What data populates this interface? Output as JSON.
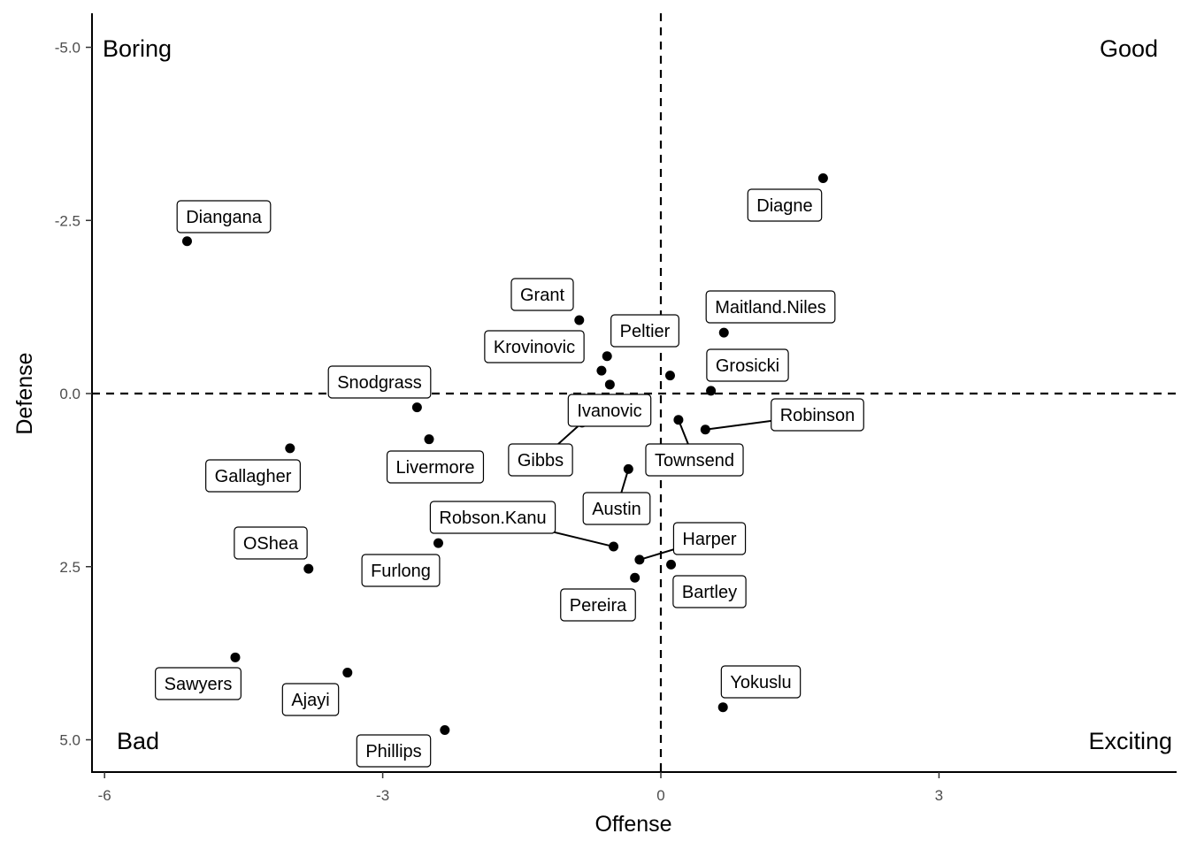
{
  "chart_data": {
    "type": "scatter",
    "xlabel": "Offense",
    "ylabel": "Defense",
    "xlim": [
      -6.13,
      5.4
    ],
    "ylim": [
      -5.5,
      5.47
    ],
    "y_reversed": true,
    "x_ticks": [
      -6,
      -3,
      0,
      3
    ],
    "x_tick_labels": [
      "-6",
      "-3",
      "0",
      "3"
    ],
    "y_ticks": [
      -5,
      -2.5,
      0,
      2.5,
      5
    ],
    "y_tick_labels": [
      "-5.0",
      "-2.5",
      "0.0",
      "2.5",
      "5.0"
    ],
    "reference_lines": {
      "x": 0,
      "y": 0
    },
    "grid": false,
    "quadrant_labels": {
      "top_left": "Boring",
      "top_right": "Good",
      "bottom_left": "Bad",
      "bottom_right": "Exciting"
    },
    "points": [
      {
        "label": "Diangana",
        "x": -5.11,
        "y": -2.2
      },
      {
        "label": "Diagne",
        "x": 1.75,
        "y": -3.11
      },
      {
        "label": "Grant",
        "x": -0.88,
        "y": -1.06
      },
      {
        "label": "Maitland.Niles",
        "x": 0.68,
        "y": -0.88
      },
      {
        "label": "Krovinovic",
        "x": -0.58,
        "y": -0.54
      },
      {
        "label": null,
        "x": -0.64,
        "y": -0.33
      },
      {
        "label": "Peltier",
        "x": 0.1,
        "y": -0.26
      },
      {
        "label": "Grosicki",
        "x": 0.54,
        "y": -0.04
      },
      {
        "label": "Ivanovic",
        "x": -0.55,
        "y": -0.13
      },
      {
        "label": "Snodgrass",
        "x": -2.63,
        "y": 0.2
      },
      {
        "label": "Gibbs",
        "x": -0.85,
        "y": 0.42
      },
      {
        "label": "Livermore",
        "x": -2.5,
        "y": 0.66
      },
      {
        "label": "Gallagher",
        "x": -4.0,
        "y": 0.79
      },
      {
        "label": "Townsend",
        "x": 0.19,
        "y": 0.38
      },
      {
        "label": "Robinson",
        "x": 0.48,
        "y": 0.52
      },
      {
        "label": "Austin",
        "x": -0.35,
        "y": 1.09
      },
      {
        "label": "Robson.Kanu",
        "x": -0.51,
        "y": 2.21
      },
      {
        "label": "Furlong",
        "x": -2.4,
        "y": 2.16
      },
      {
        "label": "OShea",
        "x": -3.8,
        "y": 2.53
      },
      {
        "label": "Harper",
        "x": -0.23,
        "y": 2.4
      },
      {
        "label": "Bartley",
        "x": 0.11,
        "y": 2.47
      },
      {
        "label": "Pereira",
        "x": -0.28,
        "y": 2.66
      },
      {
        "label": "Sawyers",
        "x": -4.59,
        "y": 3.81
      },
      {
        "label": "Ajayi",
        "x": -3.38,
        "y": 4.03
      },
      {
        "label": "Phillips",
        "x": -2.33,
        "y": 4.86
      },
      {
        "label": "Yokuslu",
        "x": 0.67,
        "y": 4.53
      }
    ]
  }
}
